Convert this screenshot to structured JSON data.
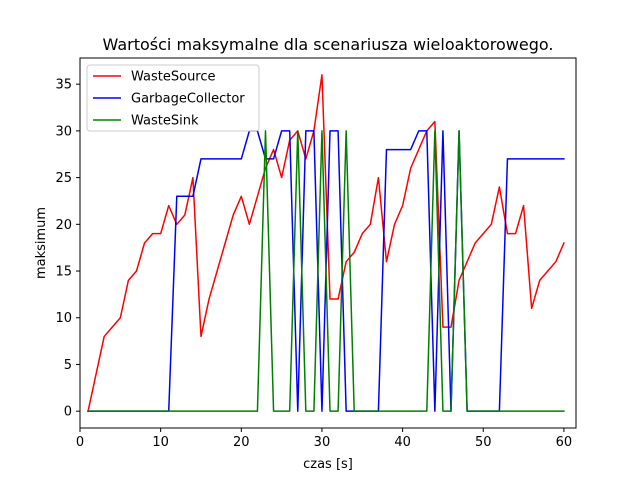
{
  "chart_data": {
    "type": "line",
    "title": "Wartości maksymalne dla scenariusza wieloaktorowego.",
    "xlabel": "czas [s]",
    "ylabel": "maksimum",
    "xlim": [
      0,
      61.5
    ],
    "ylim": [
      -1.8,
      37.8
    ],
    "xticks": [
      0,
      10,
      20,
      30,
      40,
      50,
      60
    ],
    "yticks": [
      0,
      5,
      10,
      15,
      20,
      25,
      30,
      35
    ],
    "grid": false,
    "legend_position": "top-left",
    "x": [
      1,
      2,
      3,
      4,
      5,
      6,
      7,
      8,
      9,
      10,
      11,
      12,
      13,
      14,
      15,
      16,
      17,
      18,
      19,
      20,
      21,
      22,
      23,
      24,
      25,
      26,
      27,
      28,
      29,
      30,
      31,
      32,
      33,
      34,
      35,
      36,
      37,
      38,
      39,
      40,
      41,
      42,
      43,
      44,
      45,
      46,
      47,
      48,
      49,
      50,
      51,
      52,
      53,
      54,
      55,
      56,
      57,
      58,
      59,
      60
    ],
    "series": [
      {
        "name": "WasteSource",
        "color": "#ff0000",
        "values": [
          0,
          4,
          8,
          9,
          10,
          14,
          15,
          18,
          19,
          19,
          22,
          20,
          21,
          25,
          8,
          12,
          15,
          18,
          21,
          23,
          20,
          23,
          26,
          28,
          25,
          29,
          30,
          27,
          30,
          36,
          12,
          12,
          16,
          17,
          19,
          20,
          25,
          16,
          20,
          22,
          26,
          28,
          30,
          31,
          9,
          9,
          14,
          16,
          18,
          19,
          20,
          24,
          19,
          19,
          22,
          11,
          14,
          15,
          16,
          18
        ]
      },
      {
        "name": "GarbageCollector",
        "color": "#0000ff",
        "values": [
          0,
          0,
          0,
          0,
          0,
          0,
          0,
          0,
          0,
          0,
          0,
          23,
          23,
          23,
          27,
          27,
          27,
          27,
          27,
          27,
          30,
          30,
          27,
          27,
          30,
          30,
          0,
          30,
          30,
          0,
          30,
          30,
          0,
          0,
          0,
          0,
          0,
          28,
          28,
          28,
          28,
          30,
          30,
          0,
          30,
          0,
          30,
          0,
          0,
          0,
          0,
          0,
          27,
          27,
          27,
          27,
          27,
          27,
          27,
          27
        ]
      },
      {
        "name": "WasteSink",
        "color": "#008000",
        "values": [
          0,
          0,
          0,
          0,
          0,
          0,
          0,
          0,
          0,
          0,
          0,
          0,
          0,
          0,
          0,
          0,
          0,
          0,
          0,
          0,
          0,
          0,
          30,
          0,
          0,
          0,
          30,
          0,
          0,
          30,
          0,
          0,
          30,
          0,
          0,
          0,
          0,
          0,
          0,
          0,
          0,
          0,
          0,
          30,
          0,
          0,
          30,
          0,
          0,
          0,
          0,
          0,
          0,
          0,
          0,
          0,
          0,
          0,
          0,
          0
        ]
      }
    ]
  }
}
